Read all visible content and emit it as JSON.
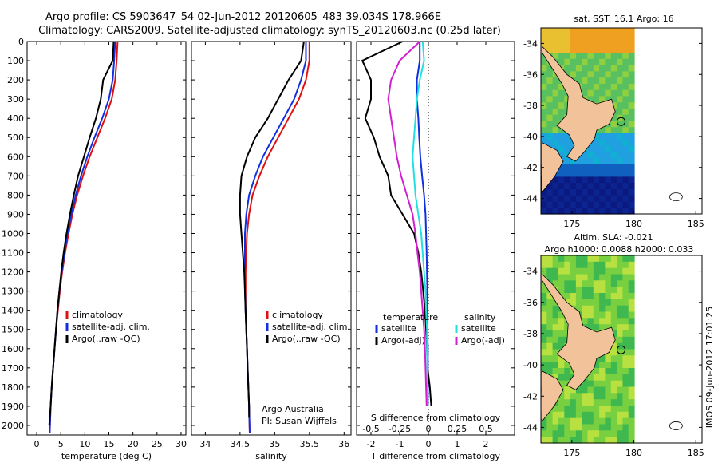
{
  "header": {
    "line1": "Argo profile: CS 5903647_54 02-Jun-2012 20120605_483 39.034S 178.966E",
    "line2": "Climatology: CARS2009. Satellite-adjusted climatology: synTS_20120603.nc (0.25d later)"
  },
  "colors": {
    "climatology": "#e01010",
    "satellite": "#1030e0",
    "argo": "#000000",
    "sal_sat_diff": "#22e0e0",
    "sal_argo_diff": "#d020d0",
    "land": "#f2c29a"
  },
  "depth_ticks": [
    "0",
    "100",
    "200",
    "300",
    "400",
    "500",
    "600",
    "700",
    "800",
    "900",
    "1000",
    "1100",
    "1200",
    "1300",
    "1400",
    "1500",
    "1600",
    "1700",
    "1800",
    "1900",
    "2000"
  ],
  "side_stamp": "IMOS 09-Jun-2012 17:01:25",
  "chart_data": [
    {
      "type": "line",
      "xlabel": "temperature (deg C)",
      "xlim": [
        -2,
        31
      ],
      "ylim": [
        2050,
        0
      ],
      "xticks": [
        "0",
        "5",
        "10",
        "15",
        "20",
        "25",
        "30"
      ],
      "legend": [
        "climatology",
        "satellite-adj. clim.",
        "Argo(..raw -QC)"
      ],
      "series": [
        {
          "name": "climatology",
          "x": [
            16.8,
            16.6,
            16.3,
            15.6,
            14.2,
            12.6,
            11.0,
            9.6,
            8.4,
            7.4,
            6.6,
            5.9,
            5.3,
            4.8,
            4.4,
            4.0,
            3.7,
            3.4,
            3.1,
            2.9,
            2.7
          ],
          "y": [
            0,
            100,
            200,
            300,
            400,
            500,
            600,
            700,
            800,
            900,
            1000,
            1100,
            1200,
            1300,
            1400,
            1500,
            1600,
            1700,
            1800,
            1900,
            2040
          ]
        },
        {
          "name": "satellite-adj. clim.",
          "x": [
            16.3,
            16.1,
            15.8,
            15.0,
            13.6,
            12.0,
            10.5,
            9.2,
            8.1,
            7.2,
            6.4,
            5.8,
            5.2,
            4.7,
            4.3,
            4.0,
            3.7,
            3.4,
            3.1,
            2.9,
            2.7
          ],
          "y": [
            0,
            100,
            200,
            300,
            400,
            500,
            600,
            700,
            800,
            900,
            1000,
            1100,
            1200,
            1300,
            1400,
            1500,
            1600,
            1700,
            1800,
            1900,
            2040
          ]
        },
        {
          "name": "Argo(..raw -QC)",
          "x": [
            16.0,
            15.8,
            13.8,
            13.3,
            12.3,
            11.0,
            9.8,
            8.6,
            7.7,
            6.9,
            6.2,
            5.6,
            5.1,
            4.7,
            4.3,
            4.0,
            3.7,
            3.4,
            3.1,
            2.9,
            2.6
          ],
          "y": [
            0,
            100,
            200,
            300,
            400,
            500,
            600,
            700,
            800,
            900,
            1000,
            1100,
            1200,
            1300,
            1400,
            1500,
            1600,
            1700,
            1800,
            1900,
            2000
          ]
        }
      ]
    },
    {
      "type": "line",
      "xlabel": "salinity",
      "xlim": [
        33.8,
        36.1
      ],
      "ylim": [
        2050,
        0
      ],
      "xticks": [
        "34",
        "34.5",
        "35",
        "35.5",
        "36"
      ],
      "legend": [
        "climatology",
        "satellite-adj. clim.",
        "Argo(..raw -QC)"
      ],
      "annotation": [
        "Argo Australia",
        "PI: Susan Wijffels"
      ],
      "series": [
        {
          "name": "climatology",
          "x": [
            35.5,
            35.5,
            35.45,
            35.35,
            35.2,
            35.05,
            34.9,
            34.78,
            34.68,
            34.63,
            34.6,
            34.59,
            34.58,
            34.58,
            34.58,
            34.59,
            34.6,
            34.61,
            34.62,
            34.63,
            34.64
          ],
          "y": [
            0,
            100,
            200,
            300,
            400,
            500,
            600,
            700,
            800,
            900,
            1000,
            1100,
            1200,
            1300,
            1400,
            1500,
            1600,
            1700,
            1800,
            1900,
            2040
          ]
        },
        {
          "name": "satellite-adj. clim.",
          "x": [
            35.45,
            35.45,
            35.38,
            35.28,
            35.13,
            34.98,
            34.83,
            34.72,
            34.63,
            34.59,
            34.57,
            34.57,
            34.57,
            34.57,
            34.58,
            34.59,
            34.6,
            34.61,
            34.62,
            34.63,
            34.64
          ],
          "y": [
            0,
            100,
            200,
            300,
            400,
            500,
            600,
            700,
            800,
            900,
            1000,
            1100,
            1200,
            1300,
            1400,
            1500,
            1600,
            1700,
            1800,
            1900,
            2040
          ]
        },
        {
          "name": "Argo(..raw -QC)",
          "x": [
            35.42,
            35.38,
            35.2,
            35.05,
            34.9,
            34.72,
            34.6,
            34.52,
            34.5,
            34.5,
            34.52,
            34.54,
            34.56,
            34.57,
            34.58,
            34.59,
            34.6,
            34.61,
            34.62,
            34.63,
            34.63
          ],
          "y": [
            0,
            100,
            200,
            300,
            400,
            500,
            600,
            700,
            800,
            900,
            1000,
            1100,
            1200,
            1300,
            1400,
            1500,
            1600,
            1700,
            1800,
            1900,
            1960
          ]
        }
      ]
    },
    {
      "type": "line",
      "xlabel": "T difference from climatology",
      "top_xlabel": "S difference from climatology",
      "xlim": [
        -2.5,
        3.0
      ],
      "ylim": [
        2050,
        0
      ],
      "xticks": [
        "-2",
        "-1",
        "0",
        "1",
        "2"
      ],
      "top_xticks": [
        "-0.5",
        "-0.25",
        "0",
        "0.25",
        "0.5"
      ],
      "legend_t_title": "temperature",
      "legend_s_title": "salinity",
      "legend": [
        "satellite",
        "Argo(-adj)",
        "satellite",
        "Argo(-adj)"
      ],
      "series": [
        {
          "name": "satellite",
          "x": [
            -0.3,
            -0.3,
            -0.4,
            -0.4,
            -0.35,
            -0.32,
            -0.28,
            -0.22,
            -0.15,
            -0.1,
            -0.08,
            -0.06,
            -0.05,
            -0.04,
            -0.03,
            -0.03,
            -0.02,
            -0.02,
            -0.02,
            -0.02
          ],
          "y": [
            0,
            100,
            200,
            300,
            400,
            500,
            600,
            700,
            800,
            900,
            1000,
            1100,
            1200,
            1300,
            1400,
            1500,
            1600,
            1700,
            1800,
            1900
          ]
        },
        {
          "name": "Argo(-adj)",
          "x": [
            -0.9,
            -2.3,
            -2.0,
            -2.0,
            -2.2,
            -1.9,
            -1.7,
            -1.4,
            -1.3,
            -0.9,
            -0.5,
            -0.35,
            -0.25,
            -0.18,
            -0.12,
            -0.08,
            -0.05,
            -0.03,
            0.05,
            0.1
          ],
          "y": [
            0,
            100,
            200,
            300,
            400,
            500,
            600,
            700,
            800,
            900,
            1000,
            1100,
            1200,
            1300,
            1400,
            1500,
            1600,
            1700,
            1800,
            1900
          ]
        },
        {
          "name": "satellite",
          "x": [
            -0.2,
            -0.15,
            -0.3,
            -0.4,
            -0.45,
            -0.5,
            -0.55,
            -0.5,
            -0.45,
            -0.35,
            -0.25,
            -0.2,
            -0.15,
            -0.1,
            -0.08,
            -0.05,
            -0.05,
            -0.04,
            -0.03,
            -0.03
          ],
          "y": [
            0,
            100,
            200,
            300,
            400,
            500,
            600,
            700,
            800,
            900,
            1000,
            1100,
            1200,
            1300,
            1400,
            1500,
            1600,
            1700,
            1800,
            1900
          ]
        },
        {
          "name": "Argo(-adj)",
          "x": [
            -0.3,
            -1.0,
            -1.3,
            -1.4,
            -1.3,
            -1.2,
            -1.1,
            -0.95,
            -0.75,
            -0.55,
            -0.45,
            -0.38,
            -0.3,
            -0.25,
            -0.2,
            -0.15,
            -0.12,
            -0.1,
            -0.08,
            -0.06
          ],
          "y": [
            0,
            100,
            200,
            300,
            400,
            500,
            600,
            700,
            800,
            900,
            1000,
            1100,
            1200,
            1300,
            1400,
            1500,
            1600,
            1700,
            1800,
            1900
          ]
        }
      ]
    },
    {
      "type": "heatmap",
      "title": "sat. SST: 16.1  Argo: 16",
      "xlim": [
        172.5,
        185.5
      ],
      "ylim": [
        -45,
        -33
      ],
      "xticks": [
        "175",
        "180",
        "185"
      ],
      "yticks": [
        "-34",
        "-36",
        "-38",
        "-40",
        "-42",
        "-44"
      ],
      "float_position": {
        "x": 178.966,
        "y": -39.034
      }
    },
    {
      "type": "heatmap",
      "title_line1": "Altim. SLA: -0.021",
      "title_line2": "Argo h1000: 0.0088 h2000: 0.033",
      "xlim": [
        172.5,
        185.5
      ],
      "ylim": [
        -45,
        -33
      ],
      "xticks": [
        "175",
        "180",
        "185"
      ],
      "yticks": [
        "-34",
        "-36",
        "-38",
        "-40",
        "-42",
        "-44"
      ],
      "float_position": {
        "x": 178.966,
        "y": -39.034
      }
    }
  ]
}
